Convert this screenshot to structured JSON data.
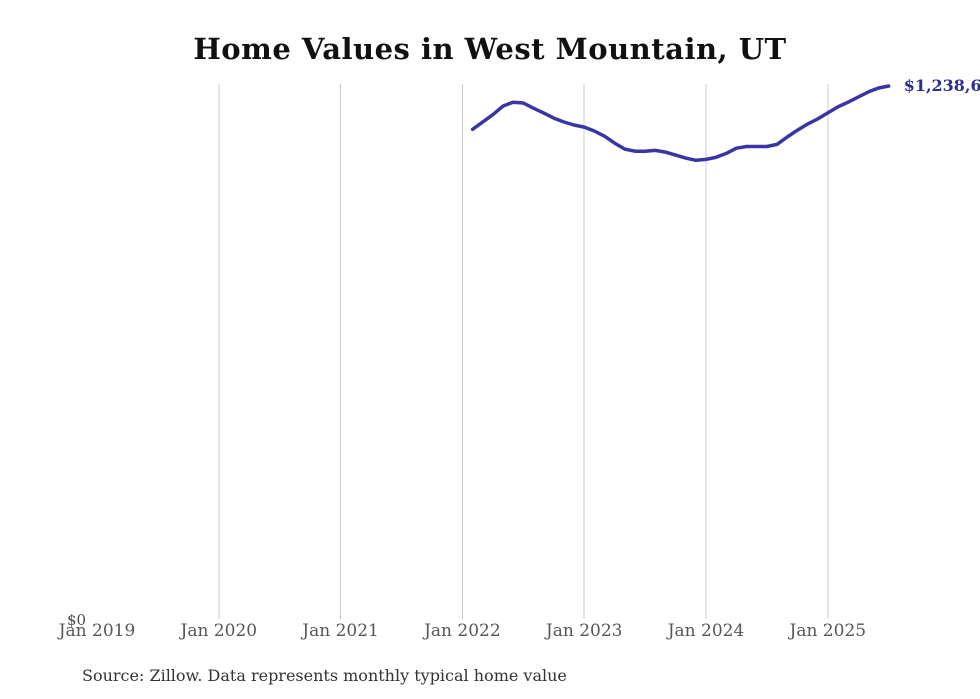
{
  "chart": {
    "title": "Home Values in West Mountain, UT",
    "source_note": "Source: Zillow. Data represents monthly typical home value",
    "y_zero_label": "$0",
    "last_value_label": "$1,238,6"
  },
  "chart_data": {
    "type": "line",
    "title": "Home Values in West Mountain, UT",
    "xlabel": "",
    "ylabel": "",
    "x_tick_labels": [
      "Jan 2019",
      "Jan 2020",
      "Jan 2021",
      "Jan 2022",
      "Jan 2023",
      "Jan 2024",
      "Jan 2025"
    ],
    "x_tick_years": [
      2019,
      2020,
      2021,
      2022,
      2023,
      2024,
      2025
    ],
    "gridline_years": [
      2020,
      2021,
      2022,
      2023,
      2024,
      2025
    ],
    "grid": "vertical-gridlines-only",
    "legend": "none",
    "ylim": [
      0,
      1250000
    ],
    "y_axis_visible_labels": [
      "$0"
    ],
    "end_point_label": "$1,238,6",
    "colors": {
      "line": "#3a35a5",
      "end_label": "#2f2d91",
      "gridline": "#cccccc",
      "axis_label": "#575757",
      "title": "#111111",
      "source": "#333333"
    },
    "series": [
      {
        "name": "Monthly typical home value",
        "color": "#3a35a5",
        "months": [
          "2022-02",
          "2022-03",
          "2022-04",
          "2022-05",
          "2022-06",
          "2022-07",
          "2022-08",
          "2022-09",
          "2022-10",
          "2022-11",
          "2022-12",
          "2023-01",
          "2023-02",
          "2023-03",
          "2023-04",
          "2023-05",
          "2023-06",
          "2023-07",
          "2023-08",
          "2023-09",
          "2023-10",
          "2023-11",
          "2023-12",
          "2024-01",
          "2024-02",
          "2024-03",
          "2024-04",
          "2024-05",
          "2024-06",
          "2024-07",
          "2024-08",
          "2024-09",
          "2024-10",
          "2024-11",
          "2024-12",
          "2025-01",
          "2025-02",
          "2025-03",
          "2025-04",
          "2025-05",
          "2025-06",
          "2025-07"
        ],
        "values": [
          1138000,
          1155000,
          1172000,
          1192000,
          1201000,
          1199000,
          1187000,
          1176000,
          1164000,
          1155000,
          1148000,
          1143000,
          1134000,
          1122000,
          1106000,
          1092000,
          1087000,
          1087000,
          1089000,
          1085000,
          1078000,
          1071000,
          1066000,
          1068000,
          1073000,
          1082000,
          1094000,
          1098000,
          1098000,
          1098000,
          1103000,
          1120000,
          1136000,
          1150000,
          1162000,
          1176000,
          1190000,
          1201000,
          1213000,
          1225000,
          1234000,
          1238600
        ]
      }
    ]
  }
}
